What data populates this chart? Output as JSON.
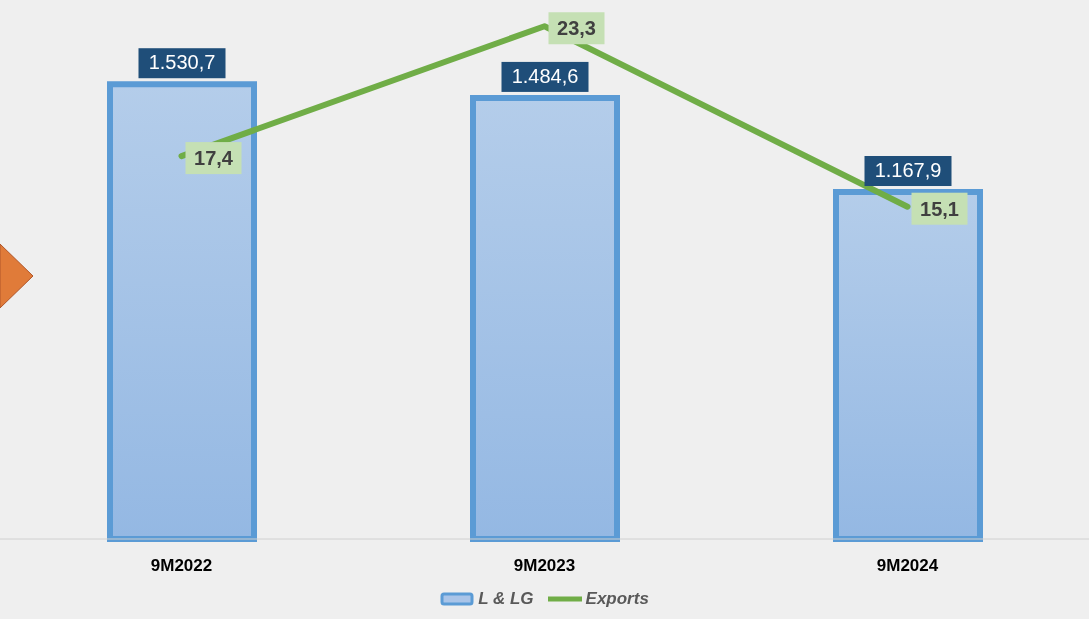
{
  "chart_data": {
    "type": "bar",
    "categories": [
      "9M2022",
      "9M2023",
      "9M2024"
    ],
    "series": [
      {
        "name": "L & LG",
        "color": "#5b9bd5",
        "values": [
          1530.7,
          1484.6,
          1167.9
        ],
        "value_labels": [
          "1.530,7",
          "1.484,6",
          "1.167,9"
        ]
      },
      {
        "name": "Exports",
        "type": "line",
        "axis": "y2",
        "color": "#70ad47",
        "values": [
          17.4,
          23.3,
          15.1
        ],
        "value_labels": [
          "17,4",
          "23,3",
          "15,1"
        ]
      }
    ],
    "legend": "bottom",
    "grid": false,
    "marker": "none",
    "line_style": "solid"
  }
}
